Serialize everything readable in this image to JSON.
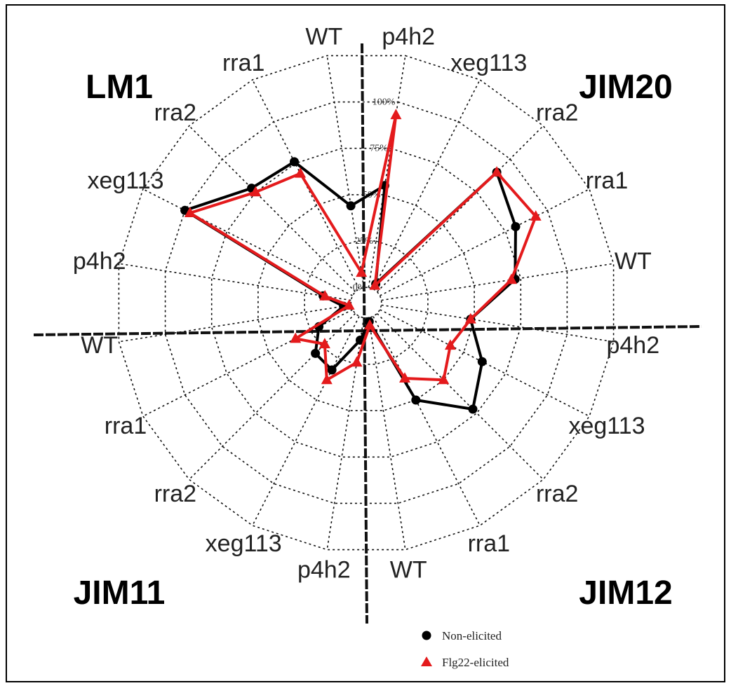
{
  "chart_data": {
    "type": "radar",
    "quadrants": [
      "LM1",
      "JIM20",
      "JIM12",
      "JIM11"
    ],
    "categories": [
      "p4h2",
      "xeg113",
      "rra2",
      "rra1",
      "WT",
      "p4h2",
      "xeg113",
      "rra2",
      "rra1",
      "WT",
      "p4h2",
      "xeg113",
      "rra2",
      "rra1",
      "WT",
      "p4h2",
      "xeg113",
      "rra2",
      "rra1",
      "WT"
    ],
    "radial_ticks": [
      "0%",
      "25%",
      "50%",
      "75%",
      "100%"
    ],
    "rlim": [
      0,
      100
    ],
    "grid": "dotted concentric polygons",
    "series": [
      {
        "name": "Non-elicited",
        "color": "#000000",
        "marker": "circle",
        "values": [
          55,
          3,
          90,
          81,
          72,
          48,
          61,
          72,
          50,
          2,
          12,
          32,
          30,
          20,
          4,
          15,
          100,
          78,
          76,
          44
        ]
      },
      {
        "name": "Flg22-elicited",
        "color": "#e41a1c",
        "marker": "triangle",
        "values": [
          93,
          2,
          90,
          93,
          70,
          48,
          42,
          50,
          37,
          4,
          24,
          38,
          23,
          34,
          1,
          14,
          97,
          75,
          69,
          8
        ]
      }
    ],
    "legend_position": "bottom-center"
  }
}
